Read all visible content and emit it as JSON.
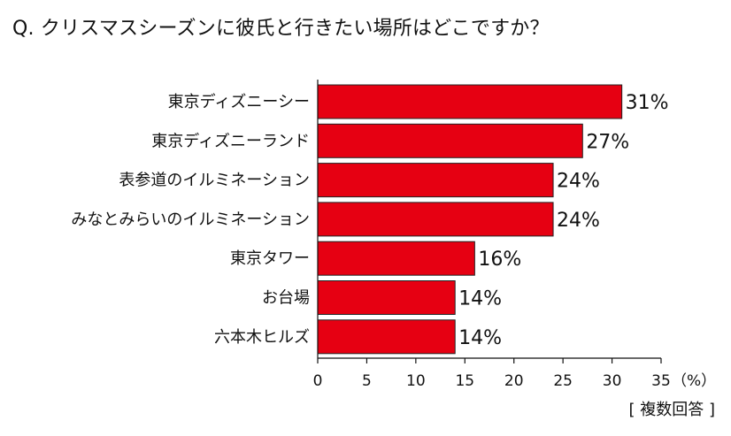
{
  "question": "Q. クリスマスシーズンに彼氏と行きたい場所はどこですか？",
  "footnote": "[ 複数回答 ]",
  "colors": {
    "bar": "#e60012",
    "bar_border": "#222222",
    "axis": "#111111"
  },
  "chart_data": {
    "type": "bar",
    "orientation": "horizontal",
    "categories": [
      "東京ディズニーシー",
      "東京ディズニーランド",
      "表参道のイルミネーション",
      "みなとみらいのイルミネーション",
      "東京タワー",
      "お台場",
      "六本木ヒルズ"
    ],
    "values": [
      31,
      27,
      24,
      24,
      16,
      14,
      14
    ],
    "value_labels": [
      "31%",
      "27%",
      "24%",
      "24%",
      "16%",
      "14%",
      "14%"
    ],
    "xlim": [
      0,
      35
    ],
    "xticks": [
      0,
      5,
      10,
      15,
      20,
      25,
      30,
      35
    ],
    "xtick_labels": [
      "0",
      "5",
      "10",
      "15",
      "20",
      "25",
      "30",
      "35"
    ],
    "xunit": "（%）",
    "grid": false
  }
}
